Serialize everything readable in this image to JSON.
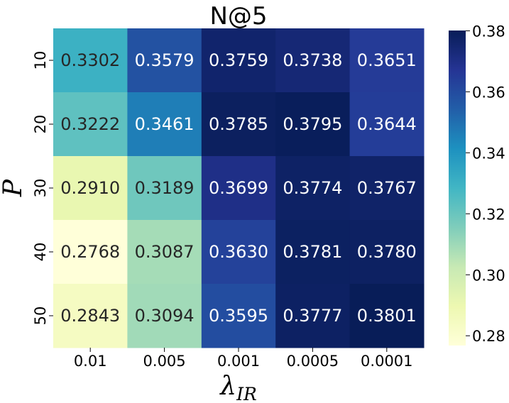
{
  "chart_data": {
    "type": "heatmap",
    "title": "N@5",
    "xlabel": {
      "main": "λ",
      "sub": "IR"
    },
    "ylabel": "P",
    "x_categories": [
      "0.01",
      "0.005",
      "0.001",
      "0.0005",
      "0.0001"
    ],
    "y_categories": [
      "10",
      "20",
      "30",
      "40",
      "50"
    ],
    "values": [
      [
        0.3302,
        0.3579,
        0.3759,
        0.3738,
        0.3651
      ],
      [
        0.3222,
        0.3461,
        0.3785,
        0.3795,
        0.3644
      ],
      [
        0.291,
        0.3189,
        0.3699,
        0.3774,
        0.3767
      ],
      [
        0.2768,
        0.3087,
        0.363,
        0.3781,
        0.378
      ],
      [
        0.2843,
        0.3094,
        0.3595,
        0.3777,
        0.3801
      ]
    ],
    "value_labels": [
      [
        "0.3302",
        "0.3579",
        "0.3759",
        "0.3738",
        "0.3651"
      ],
      [
        "0.3222",
        "0.3461",
        "0.3785",
        "0.3795",
        "0.3644"
      ],
      [
        "0.2910",
        "0.3189",
        "0.3699",
        "0.3774",
        "0.3767"
      ],
      [
        "0.2768",
        "0.3087",
        "0.3630",
        "0.3781",
        "0.3780"
      ],
      [
        "0.2843",
        "0.3094",
        "0.3595",
        "0.3777",
        "0.3801"
      ]
    ],
    "colorbar": {
      "colormap": "YlGnBu",
      "range": [
        0.2768,
        0.3801
      ],
      "ticks": [
        0.28,
        0.3,
        0.32,
        0.34,
        0.36,
        0.38
      ],
      "tick_labels": [
        "0.28",
        "0.30",
        "0.32",
        "0.34",
        "0.36",
        "0.38"
      ]
    },
    "colormap_stops": [
      "#ffffd9",
      "#edf8b1",
      "#c7e9b4",
      "#7fcdbb",
      "#41b6c4",
      "#1d91c0",
      "#225ea8",
      "#253494",
      "#081d58"
    ]
  }
}
